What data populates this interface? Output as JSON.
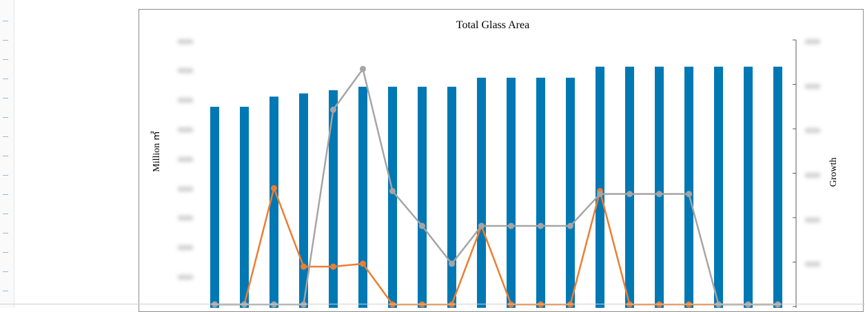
{
  "chart_data": {
    "type": "bar",
    "title": "Total Glass Area",
    "ylabel": "Million ㎡",
    "y2label": "Growth",
    "ylim": [
      0,
      1
    ],
    "y2lim": [
      0,
      1
    ],
    "categories": [
      "",
      "",
      "",
      "",
      "",
      "",
      "",
      "",
      "",
      "",
      "",
      "",
      "",
      "",
      "",
      "",
      "",
      "",
      "",
      ""
    ],
    "series": [
      {
        "kind": "bar",
        "axis": "left",
        "color": "#0078B4",
        "values": [
          0.68,
          0.68,
          0.715,
          0.726,
          0.737,
          0.749,
          0.749,
          0.749,
          0.749,
          0.78,
          0.78,
          0.78,
          0.78,
          0.818,
          0.818,
          0.818,
          0.818,
          0.818,
          0.818,
          0.818
        ]
      },
      {
        "kind": "line",
        "axis": "right",
        "color": "#ED7D31",
        "values": [
          0.0,
          0.0,
          0.4,
          0.13,
          0.13,
          0.14,
          0.0,
          0.0,
          0.0,
          0.27,
          0.0,
          0.0,
          0.0,
          0.39,
          0.0,
          0.0,
          0.0,
          0.0,
          0.0,
          0.0
        ]
      },
      {
        "kind": "line",
        "axis": "right",
        "color": "#A5A5A5",
        "values": [
          0.0,
          0.0,
          0.0,
          0.0,
          0.67,
          0.81,
          0.39,
          0.27,
          0.14,
          0.27,
          0.27,
          0.27,
          0.27,
          0.38,
          0.38,
          0.38,
          0.38,
          0.0,
          0.0,
          0.0
        ]
      }
    ],
    "grid": false,
    "legend": "none"
  }
}
